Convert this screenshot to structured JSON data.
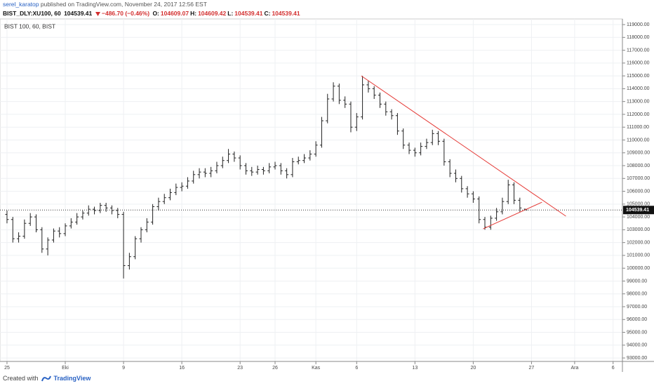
{
  "header": {
    "author": "serel_karatop",
    "published": " published on TradingView.com, November 24, 2017 12:56 EST",
    "symbol": "BIST_DLY:XU100, 60",
    "price": "104539.41",
    "change": "−486.70 (−0.46%)",
    "ohlc": [
      {
        "label": "O:",
        "value": "104609.07"
      },
      {
        "label": "H:",
        "value": "104609.42"
      },
      {
        "label": "L:",
        "value": "104539.41"
      },
      {
        "label": "C:",
        "value": "104539.41"
      }
    ]
  },
  "footer": {
    "created": "Created with",
    "brand": "TradingView"
  },
  "chart_data": {
    "type": "ohlc",
    "watermark": "BIST 100, 60, BIST",
    "color": "#222222",
    "grid": true,
    "xlim": [
      -0.6,
      52.8
    ],
    "ylim": [
      92730,
      119440
    ],
    "xticks": [
      {
        "value": 0,
        "label": "25"
      },
      {
        "value": 5,
        "label": "Eki"
      },
      {
        "value": 10,
        "label": "9"
      },
      {
        "value": 15,
        "label": "16"
      },
      {
        "value": 20,
        "label": "23"
      },
      {
        "value": 23,
        "label": "26"
      },
      {
        "value": 26.5,
        "label": "Kas"
      },
      {
        "value": 30,
        "label": "6"
      },
      {
        "value": 35,
        "label": "13"
      },
      {
        "value": 40,
        "label": "20"
      },
      {
        "value": 45,
        "label": "27"
      },
      {
        "value": 48.7,
        "label": "Ara"
      },
      {
        "value": 52,
        "label": "6"
      }
    ],
    "yticks": [
      {
        "value": 93000,
        "label": "93000.00"
      },
      {
        "value": 94000,
        "label": "94000.00"
      },
      {
        "value": 95000,
        "label": "95000.00"
      },
      {
        "value": 96000,
        "label": "96000.00"
      },
      {
        "value": 97000,
        "label": "97000.00"
      },
      {
        "value": 98000,
        "label": "98000.00"
      },
      {
        "value": 99000,
        "label": "99000.00"
      },
      {
        "value": 100000,
        "label": "100000.00"
      },
      {
        "value": 101000,
        "label": "101000.00"
      },
      {
        "value": 102000,
        "label": "102000.00"
      },
      {
        "value": 103000,
        "label": "103000.00"
      },
      {
        "value": 104000,
        "label": "104000.00"
      },
      {
        "value": 105000,
        "label": "105000.00"
      },
      {
        "value": 106000,
        "label": "106000.00"
      },
      {
        "value": 107000,
        "label": "107000.00"
      },
      {
        "value": 108000,
        "label": "108000.00"
      },
      {
        "value": 109000,
        "label": "109000.00"
      },
      {
        "value": 110000,
        "label": "110000.00"
      },
      {
        "value": 111000,
        "label": "111000.00"
      },
      {
        "value": 112000,
        "label": "112000.00"
      },
      {
        "value": 113000,
        "label": "113000.00"
      },
      {
        "value": 114000,
        "label": "114000.00"
      },
      {
        "value": 115000,
        "label": "115000.00"
      },
      {
        "value": 116000,
        "label": "116000.00"
      },
      {
        "value": 117000,
        "label": "117000.00"
      },
      {
        "value": 118000,
        "label": "118000.00"
      },
      {
        "value": 119000,
        "label": "119000.00"
      }
    ],
    "x": [
      0,
      0.5,
      1,
      1.5,
      2,
      2.5,
      3,
      3.5,
      4,
      4.5,
      5,
      5.5,
      6,
      6.5,
      7,
      7.5,
      8,
      8.5,
      9,
      9.5,
      10,
      10.5,
      11,
      11.5,
      12,
      12.5,
      13,
      13.5,
      14,
      14.5,
      15,
      15.5,
      16,
      16.5,
      17,
      17.5,
      18,
      18.5,
      19,
      19.5,
      20,
      20.5,
      21,
      21.5,
      22,
      22.5,
      23,
      23.5,
      24,
      24.5,
      25,
      25.5,
      26,
      26.5,
      27,
      27.5,
      28,
      28.5,
      29,
      29.5,
      30,
      30.5,
      31,
      31.5,
      32,
      32.5,
      33,
      33.5,
      34,
      34.5,
      35,
      35.5,
      36,
      36.5,
      37,
      37.5,
      38,
      38.5,
      39,
      39.5,
      40,
      40.5,
      41,
      41.5,
      42,
      42.5,
      43,
      43.5,
      44,
      44.5
    ],
    "open": [
      104200,
      103800,
      102300,
      102500,
      103500,
      104000,
      103000,
      101500,
      102200,
      102900,
      102700,
      103300,
      103600,
      104000,
      104300,
      104600,
      104500,
      104900,
      104700,
      104500,
      104200,
      100200,
      100900,
      102300,
      103000,
      103600,
      104800,
      105200,
      105500,
      105900,
      106300,
      106400,
      106800,
      107300,
      107500,
      107400,
      107600,
      108000,
      108400,
      108900,
      108600,
      108000,
      107600,
      107500,
      107700,
      107600,
      107900,
      108000,
      107600,
      107300,
      108300,
      108400,
      108600,
      108900,
      109600,
      111500,
      113200,
      114200,
      113100,
      112800,
      111000,
      111800,
      114300,
      114000,
      113500,
      112800,
      112200,
      111900,
      110700,
      109600,
      109200,
      109000,
      109500,
      109800,
      110500,
      109900,
      108300,
      107400,
      107000,
      106200,
      105800,
      105400,
      103800,
      103200,
      103900,
      104400,
      105200,
      106500,
      105300,
      104609.07
    ],
    "high": [
      104500,
      104000,
      102800,
      103800,
      104300,
      104200,
      103200,
      102400,
      103100,
      103200,
      103500,
      103900,
      104300,
      104500,
      104900,
      104800,
      105100,
      105100,
      104900,
      104700,
      104400,
      101200,
      102500,
      103200,
      103900,
      105000,
      105500,
      105800,
      106200,
      106600,
      106700,
      107100,
      107600,
      107800,
      107800,
      107900,
      108300,
      108700,
      109300,
      109100,
      108800,
      108200,
      107900,
      108000,
      107900,
      108200,
      108300,
      108200,
      107800,
      108600,
      108700,
      108900,
      109200,
      109900,
      111800,
      113600,
      114500,
      114400,
      113400,
      113000,
      112100,
      115000,
      114600,
      114200,
      113700,
      113000,
      112400,
      112100,
      110900,
      109800,
      109400,
      109800,
      110100,
      110800,
      110700,
      110100,
      108500,
      107700,
      107200,
      106400,
      106000,
      105600,
      104000,
      104100,
      104700,
      105500,
      106900,
      106700,
      105500,
      104609.42
    ],
    "low": [
      103500,
      102000,
      102000,
      102300,
      103300,
      102800,
      101200,
      101000,
      102000,
      102400,
      102500,
      103100,
      103400,
      103800,
      104100,
      104200,
      104300,
      104400,
      104200,
      103900,
      99200,
      99900,
      100700,
      102000,
      102800,
      103400,
      104500,
      105000,
      105300,
      105700,
      106000,
      106200,
      106600,
      107000,
      107100,
      107100,
      107400,
      107800,
      108200,
      108300,
      107700,
      107300,
      107200,
      107300,
      107300,
      107400,
      107700,
      107300,
      107000,
      107100,
      108100,
      108200,
      108400,
      108700,
      109400,
      111300,
      113000,
      112800,
      112500,
      110600,
      110700,
      111600,
      113700,
      113200,
      112500,
      111900,
      111600,
      110400,
      109300,
      108900,
      108700,
      108800,
      109300,
      109600,
      109600,
      108000,
      107100,
      106700,
      105900,
      105500,
      105100,
      103500,
      103000,
      103000,
      103700,
      104200,
      105000,
      105000,
      104400,
      104539.41
    ],
    "close": [
      103800,
      102300,
      102500,
      103500,
      104000,
      103000,
      101500,
      102200,
      102900,
      102700,
      103300,
      103600,
      104000,
      104300,
      104600,
      104500,
      104900,
      104700,
      104500,
      104200,
      100200,
      100900,
      102300,
      103000,
      103600,
      104800,
      105200,
      105500,
      105900,
      106300,
      106400,
      106800,
      107300,
      107500,
      107400,
      107600,
      108000,
      108400,
      108900,
      108600,
      108000,
      107600,
      107500,
      107700,
      107600,
      107900,
      108000,
      107600,
      107300,
      108300,
      108400,
      108600,
      108900,
      109600,
      111500,
      113200,
      114200,
      113100,
      112800,
      111000,
      111800,
      114300,
      114000,
      113500,
      112800,
      112200,
      111900,
      110700,
      109600,
      109200,
      109000,
      109500,
      109800,
      110500,
      109900,
      108300,
      107400,
      107000,
      106200,
      105800,
      105400,
      103800,
      103200,
      103900,
      104400,
      105200,
      106500,
      105300,
      104700,
      104539.41
    ],
    "trendline_color": "#e53935",
    "trendlines": [
      {
        "x": [
          30.4,
          47.95
        ],
        "y": [
          115000,
          104060
        ]
      },
      {
        "x": [
          40.85,
          45.9
        ],
        "y": [
          103070,
          105150
        ]
      }
    ]
  }
}
